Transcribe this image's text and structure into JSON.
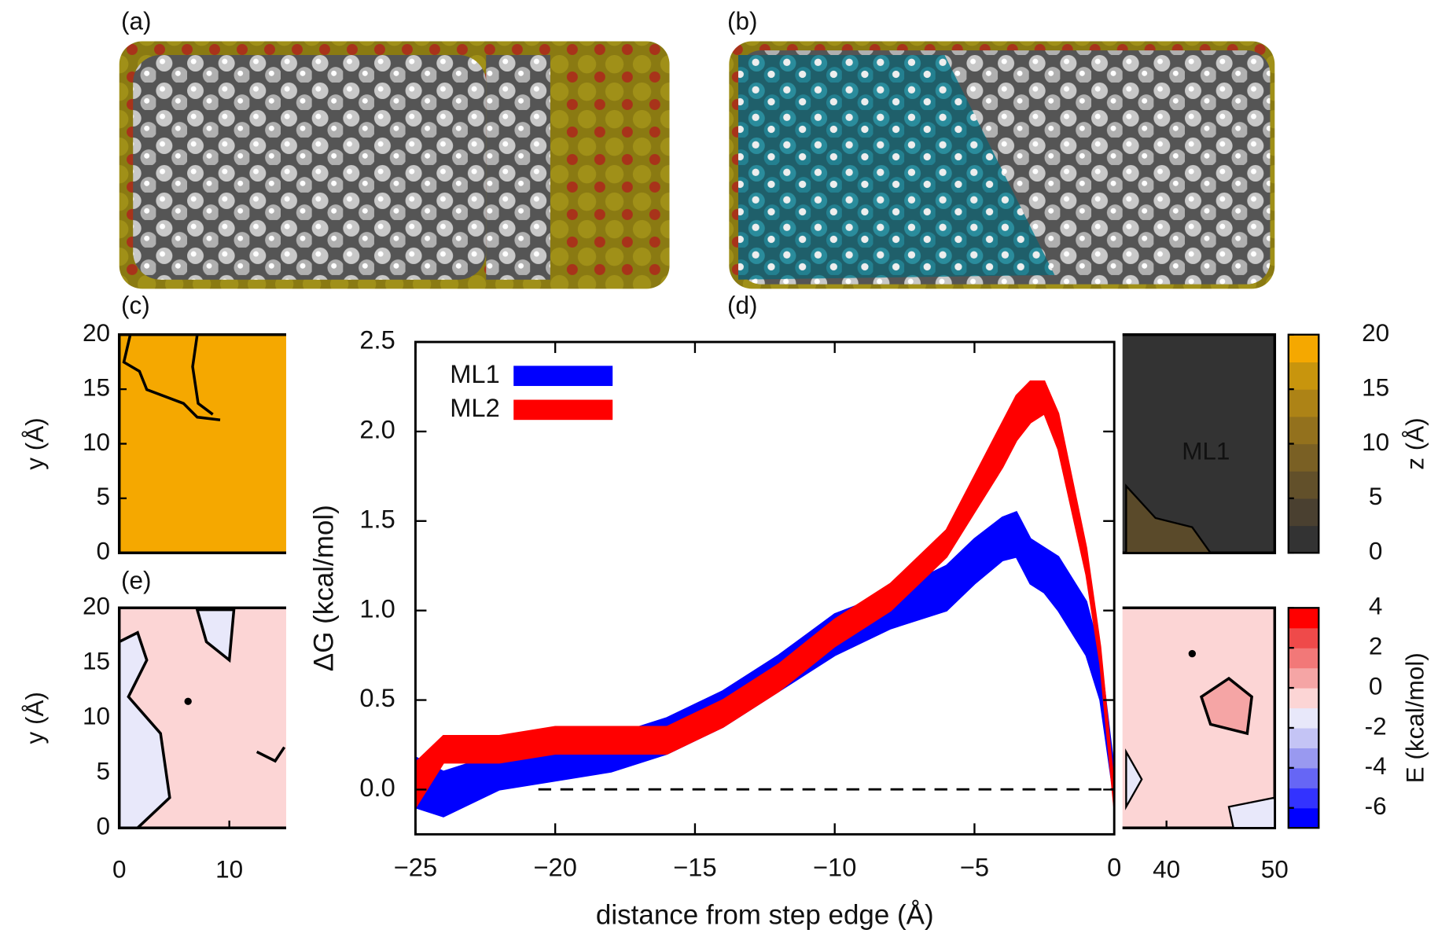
{
  "panel_labels": [
    "(a)",
    "(b)",
    "(c)",
    "(d)",
    "(e)"
  ],
  "chart_data": [
    {
      "type": "area",
      "xlabel": "distance from step edge (Å)",
      "ylabel": "ΔG (kcal/mol)",
      "x": [
        -25,
        -24,
        -22,
        -20,
        -18,
        -16,
        -14,
        -12,
        -10,
        -8,
        -6,
        -5,
        -4,
        -3.5,
        -3,
        -2.5,
        -2,
        -1,
        -0.5,
        0
      ],
      "series": [
        {
          "name": "ML1",
          "color": "#0000ff",
          "upper": [
            0.18,
            0.1,
            0.2,
            0.25,
            0.3,
            0.4,
            0.55,
            0.75,
            0.98,
            1.1,
            1.25,
            1.4,
            1.52,
            1.55,
            1.4,
            1.35,
            1.3,
            1.05,
            0.75,
            0.1
          ],
          "lower": [
            -0.1,
            -0.15,
            0.0,
            0.05,
            0.1,
            0.2,
            0.35,
            0.55,
            0.75,
            0.9,
            1.0,
            1.15,
            1.28,
            1.3,
            1.15,
            1.1,
            1.0,
            0.75,
            0.5,
            -0.05
          ]
        },
        {
          "name": "ML2",
          "color": "#ff0000",
          "upper": [
            0.15,
            0.3,
            0.3,
            0.35,
            0.35,
            0.35,
            0.5,
            0.7,
            0.95,
            1.15,
            1.45,
            1.75,
            2.05,
            2.2,
            2.28,
            2.28,
            2.1,
            1.35,
            0.8,
            0
          ],
          "lower": [
            -0.1,
            0.15,
            0.15,
            0.2,
            0.2,
            0.2,
            0.35,
            0.55,
            0.8,
            1.0,
            1.3,
            1.55,
            1.8,
            1.95,
            2.05,
            2.1,
            1.9,
            1.2,
            0.7,
            -0.1
          ]
        }
      ],
      "xlim": [
        -25,
        0
      ],
      "xticks": [
        {
          "value": -25,
          "label": "−25"
        },
        {
          "value": -20,
          "label": "−20"
        },
        {
          "value": -15,
          "label": "−15"
        },
        {
          "value": -10,
          "label": "−10"
        },
        {
          "value": -5,
          "label": "−5"
        },
        0
      ],
      "ylim": [
        -0.25,
        2.5
      ],
      "yticks": [
        {
          "value": 0,
          "label": "0.0"
        },
        0.5,
        {
          "value": 1,
          "label": "1.0"
        },
        1.5,
        {
          "value": 2,
          "label": "2.0"
        },
        2.5
      ],
      "legend": "top-left"
    },
    {
      "type": "contour",
      "color": "#f5a800",
      "ylabel": "y (Å)",
      "xlim": [
        0,
        50
      ],
      "ylim": [
        0,
        20
      ],
      "yticks": [
        0,
        5,
        10,
        15,
        20
      ]
    },
    {
      "type": "contour",
      "color": "#333333",
      "annotation": "ML1",
      "annotation_color": "#f5a800",
      "xlim": [
        0,
        50
      ],
      "ylim": [
        0,
        20
      ]
    },
    {
      "type": "contour",
      "color": "#fcd5d5",
      "ylabel": "y (Å)",
      "xlim": [
        0,
        50
      ],
      "ylim": [
        0,
        20
      ],
      "yticks": [
        0,
        5,
        10,
        15,
        20
      ],
      "xticks": [
        0,
        10
      ]
    },
    {
      "type": "contour",
      "color": "#fcd5d5",
      "xlim": [
        0,
        50
      ],
      "ylim": [
        0,
        20
      ],
      "xticks": [
        40,
        50
      ]
    },
    {
      "type": "colorbar",
      "label": "z (Å)",
      "ylim": [
        0,
        20
      ],
      "yticks": [
        0,
        5,
        10,
        15,
        20
      ],
      "colors": [
        "#333333",
        "#4a4030",
        "#62502a",
        "#7a6024",
        "#93711d",
        "#ad8316",
        "#c8950d",
        "#f5a800"
      ]
    },
    {
      "type": "colorbar",
      "label": "E (kcal/mol)",
      "ylim": [
        -7,
        4
      ],
      "yticks": [
        4,
        2,
        0,
        -2,
        -4,
        -6
      ],
      "colors": [
        "#0000ff",
        "#3333ff",
        "#6666f5",
        "#9999f0",
        "#c4c4f5",
        "#e8e8fa",
        "#fcd5d5",
        "#f5a5a5",
        "#f27878",
        "#ef4a4a",
        "#ff0000"
      ]
    }
  ]
}
